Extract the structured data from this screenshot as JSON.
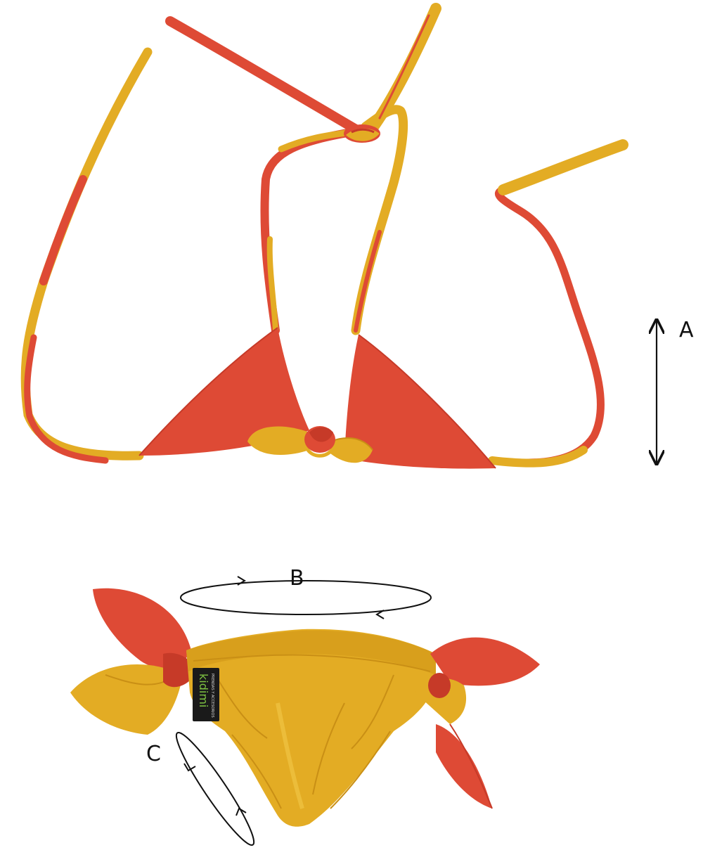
{
  "colors": {
    "red": "#de4a35",
    "red_dark": "#c63a28",
    "gold": "#e3ac24",
    "gold_dark": "#c98f15",
    "gold_light": "#ecbd3a",
    "arrow": "#111111"
  },
  "measurements": {
    "a": {
      "label": "A",
      "kind": "double-arrow-vertical"
    },
    "b": {
      "label": "B",
      "kind": "loop-ellipse-horizontal"
    },
    "c": {
      "label": "C",
      "kind": "loop-ellipse-diagonal"
    }
  },
  "garment": {
    "top": {
      "name": "bikini-top",
      "colors": [
        "red",
        "gold"
      ]
    },
    "bottom": {
      "name": "bikini-bottom",
      "colors": [
        "gold",
        "red"
      ]
    }
  },
  "brand_tag": {
    "logo_text": "kidimi",
    "logo_subtext": "PRENDAS Y ACCESORIOS"
  }
}
